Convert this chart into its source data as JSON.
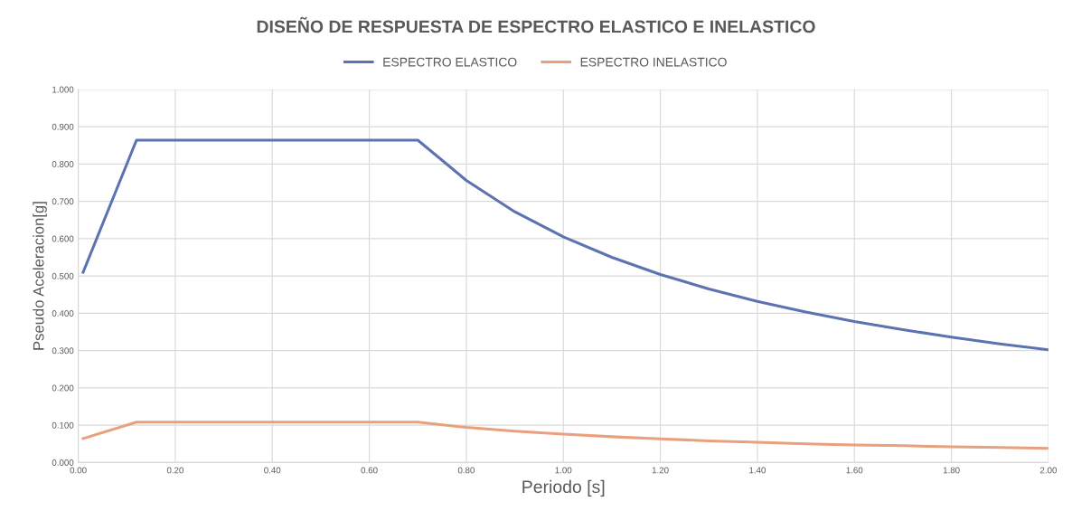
{
  "chart_data": {
    "type": "line",
    "title": "DISEÑO DE RESPUESTA DE ESPECTRO ELASTICO E INELASTICO",
    "xlabel": "Periodo [s]",
    "ylabel": "Pseudo Aceleracion[g]",
    "x": [
      0.01,
      0.12,
      0.2,
      0.3,
      0.4,
      0.5,
      0.6,
      0.7,
      0.8,
      0.9,
      1.0,
      1.1,
      1.2,
      1.3,
      1.4,
      1.5,
      1.6,
      1.7,
      1.8,
      1.9,
      2.0
    ],
    "series": [
      {
        "name": "ESPECTRO ELASTICO",
        "color": "#5b73b0",
        "values": [
          0.51,
          0.864,
          0.864,
          0.864,
          0.864,
          0.864,
          0.864,
          0.864,
          0.756,
          0.672,
          0.605,
          0.55,
          0.504,
          0.465,
          0.432,
          0.403,
          0.378,
          0.356,
          0.336,
          0.318,
          0.302
        ]
      },
      {
        "name": "ESPECTRO INELASTICO",
        "color": "#e9a07c",
        "values": [
          0.064,
          0.108,
          0.108,
          0.108,
          0.108,
          0.108,
          0.108,
          0.108,
          0.094,
          0.084,
          0.076,
          0.069,
          0.063,
          0.058,
          0.054,
          0.05,
          0.047,
          0.045,
          0.042,
          0.04,
          0.038
        ]
      }
    ],
    "xlim": [
      0,
      2.0
    ],
    "xticks": [
      {
        "value": 0,
        "label": "0.00"
      },
      {
        "value": 0.2,
        "label": "0.20"
      },
      {
        "value": 0.4,
        "label": "0.40"
      },
      {
        "value": 0.6,
        "label": "0.60"
      },
      {
        "value": 0.8,
        "label": "0.80"
      },
      {
        "value": 1.0,
        "label": "1.00"
      },
      {
        "value": 1.2,
        "label": "1.20"
      },
      {
        "value": 1.4,
        "label": "1.40"
      },
      {
        "value": 1.6,
        "label": "1.60"
      },
      {
        "value": 1.8,
        "label": "1.80"
      },
      {
        "value": 2.0,
        "label": "2.00"
      }
    ],
    "ylim": [
      0,
      1.0
    ],
    "yticks": [
      {
        "value": 0,
        "label": "0.000"
      },
      {
        "value": 0.1,
        "label": "0.100"
      },
      {
        "value": 0.2,
        "label": "0.200"
      },
      {
        "value": 0.3,
        "label": "0.300"
      },
      {
        "value": 0.4,
        "label": "0.400"
      },
      {
        "value": 0.5,
        "label": "0.500"
      },
      {
        "value": 0.6,
        "label": "0.600"
      },
      {
        "value": 0.7,
        "label": "0.700"
      },
      {
        "value": 0.8,
        "label": "0.800"
      },
      {
        "value": 0.9,
        "label": "0.900"
      },
      {
        "value": 1.0,
        "label": "1.000"
      }
    ],
    "grid": true,
    "legend": "top",
    "marker": "none",
    "line_style": "solid"
  }
}
